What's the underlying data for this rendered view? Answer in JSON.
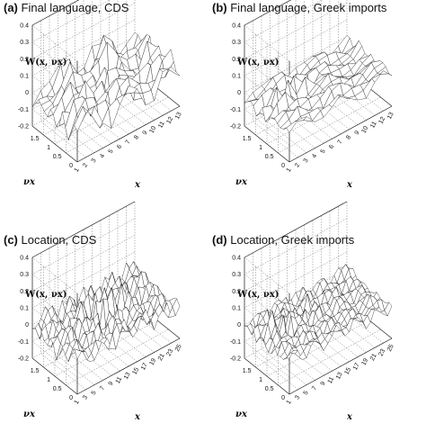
{
  "chart_data": [
    {
      "type": "surface3d",
      "panel_letter": "(a)",
      "title": "Final language, CDS",
      "zlabel": "W(x, νx)",
      "ylabel": "νx",
      "xlabel": "x",
      "x_ticks": [
        "1",
        "2",
        "3",
        "4",
        "5",
        "6",
        "7",
        "8",
        "9",
        "10",
        "11",
        "12",
        "13"
      ],
      "y_ticks": [
        "0",
        "0.5",
        "1",
        "1.5"
      ],
      "z_ticks": [
        "-0.2",
        "-0.1",
        "0",
        "0.1",
        "0.2",
        "0.3",
        "0.4"
      ],
      "xlim": [
        1,
        13
      ],
      "ylim": [
        0,
        2
      ],
      "zlim": [
        -0.2,
        0.4
      ],
      "surface": {
        "x_count": 13,
        "y_count": 16,
        "seed": 11,
        "amplitude": 0.22,
        "offset": 0.0,
        "peak_index": [
          6,
          9
        ]
      }
    },
    {
      "type": "surface3d",
      "panel_letter": "(b)",
      "title": "Final language, Greek imports",
      "zlabel": "W(x, νx)",
      "ylabel": "νx",
      "xlabel": "x",
      "x_ticks": [
        "1",
        "2",
        "3",
        "4",
        "5",
        "6",
        "7",
        "8",
        "9",
        "10",
        "11",
        "12",
        "13"
      ],
      "y_ticks": [
        "0",
        "0.5",
        "1",
        "1.5"
      ],
      "z_ticks": [
        "-0.2",
        "-0.1",
        "0",
        "0.1",
        "0.2",
        "0.3",
        "0.4"
      ],
      "xlim": [
        1,
        13
      ],
      "ylim": [
        0,
        2
      ],
      "zlim": [
        -0.2,
        0.4
      ],
      "surface": {
        "x_count": 13,
        "y_count": 16,
        "seed": 23,
        "amplitude": 0.1,
        "offset": -0.02,
        "peak_index": [
          3,
          10
        ]
      }
    },
    {
      "type": "surface3d",
      "panel_letter": "(c)",
      "title": "Location, CDS",
      "zlabel": "W(x, νx)",
      "ylabel": "νx",
      "xlabel": "x",
      "x_ticks": [
        "1",
        "3",
        "5",
        "7",
        "9",
        "11",
        "13",
        "15",
        "17",
        "19",
        "21",
        "23",
        "25"
      ],
      "y_ticks": [
        "0",
        "0.5",
        "1",
        "1.5"
      ],
      "z_ticks": [
        "-0.2",
        "-0.1",
        "0",
        "0.1",
        "0.2",
        "0.3",
        "0.4"
      ],
      "xlim": [
        1,
        25
      ],
      "ylim": [
        0,
        2
      ],
      "zlim": [
        -0.2,
        0.4
      ],
      "surface": {
        "x_count": 25,
        "y_count": 16,
        "seed": 37,
        "amplitude": 0.16,
        "offset": 0.0,
        "peak_index": [
          12,
          8
        ]
      }
    },
    {
      "type": "surface3d",
      "panel_letter": "(d)",
      "title": "Location, Greek imports",
      "zlabel": "W(x, νx)",
      "ylabel": "νx",
      "xlabel": "x",
      "x_ticks": [
        "1",
        "3",
        "5",
        "7",
        "9",
        "11",
        "13",
        "15",
        "17",
        "19",
        "21",
        "23",
        "25"
      ],
      "y_ticks": [
        "0",
        "0.5",
        "1",
        "1.5"
      ],
      "z_ticks": [
        "-0.2",
        "-0.1",
        "0",
        "0.1",
        "0.2",
        "0.3",
        "0.4"
      ],
      "xlim": [
        1,
        25
      ],
      "ylim": [
        0,
        2
      ],
      "zlim": [
        -0.2,
        0.4
      ],
      "surface": {
        "x_count": 25,
        "y_count": 16,
        "seed": 51,
        "amplitude": 0.1,
        "offset": 0.0,
        "peak_index": [
          6,
          10
        ]
      }
    }
  ]
}
